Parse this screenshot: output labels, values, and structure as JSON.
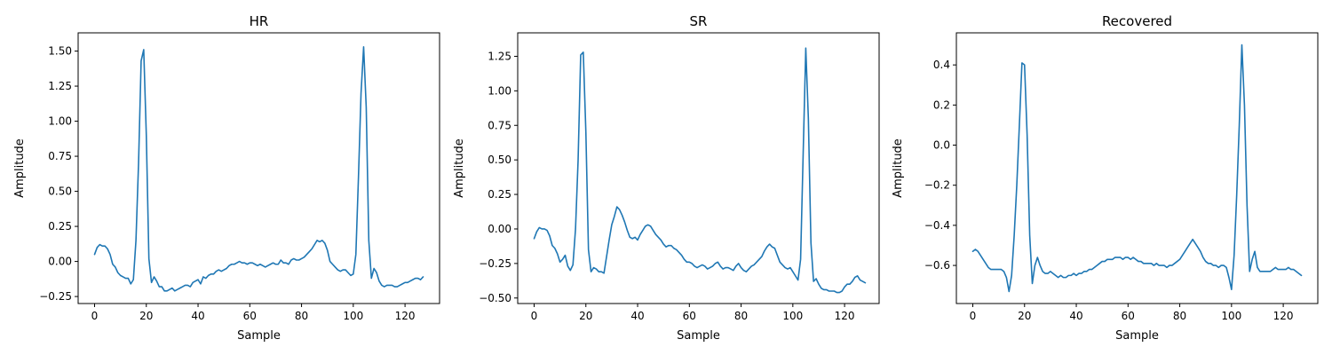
{
  "chart_data": [
    {
      "type": "line",
      "title": "HR",
      "xlabel": "Sample",
      "ylabel": "Amplitude",
      "xlim": [
        -6.35,
        133.35
      ],
      "ylim": [
        -0.3,
        1.63
      ],
      "xticks": [
        0,
        20,
        40,
        60,
        80,
        100,
        120
      ],
      "yticks": [
        -0.25,
        0.0,
        0.25,
        0.5,
        0.75,
        1.0,
        1.25,
        1.5
      ],
      "ytick_labels": [
        "−0.25",
        "0.00",
        "0.25",
        "0.50",
        "0.75",
        "1.00",
        "1.25",
        "1.50"
      ],
      "grid": false,
      "color": "#1f77b4",
      "series": [
        {
          "values": [
            0.05,
            0.1,
            0.12,
            0.11,
            0.11,
            0.09,
            0.05,
            -0.02,
            -0.04,
            -0.08,
            -0.1,
            -0.11,
            -0.12,
            -0.12,
            -0.16,
            -0.13,
            0.15,
            0.7,
            1.43,
            1.51,
            0.9,
            0.02,
            -0.15,
            -0.11,
            -0.14,
            -0.18,
            -0.18,
            -0.21,
            -0.21,
            -0.2,
            -0.19,
            -0.21,
            -0.2,
            -0.19,
            -0.18,
            -0.17,
            -0.17,
            -0.18,
            -0.15,
            -0.14,
            -0.13,
            -0.16,
            -0.11,
            -0.12,
            -0.1,
            -0.09,
            -0.09,
            -0.07,
            -0.06,
            -0.07,
            -0.06,
            -0.05,
            -0.03,
            -0.02,
            -0.02,
            -0.01,
            0.0,
            -0.01,
            -0.01,
            -0.02,
            -0.01,
            -0.01,
            -0.02,
            -0.03,
            -0.02,
            -0.03,
            -0.04,
            -0.03,
            -0.02,
            -0.01,
            -0.02,
            -0.02,
            0.01,
            -0.01,
            -0.01,
            -0.02,
            0.01,
            0.02,
            0.01,
            0.01,
            0.02,
            0.03,
            0.05,
            0.07,
            0.09,
            0.12,
            0.15,
            0.14,
            0.15,
            0.13,
            0.08,
            0.0,
            -0.02,
            -0.04,
            -0.06,
            -0.07,
            -0.06,
            -0.06,
            -0.08,
            -0.1,
            -0.09,
            0.05,
            0.6,
            1.2,
            1.53,
            1.1,
            0.15,
            -0.12,
            -0.05,
            -0.08,
            -0.14,
            -0.17,
            -0.18,
            -0.17,
            -0.17,
            -0.17,
            -0.18,
            -0.18,
            -0.17,
            -0.16,
            -0.15,
            -0.15,
            -0.14,
            -0.13,
            -0.12,
            -0.12,
            -0.13,
            -0.11
          ]
        }
      ]
    },
    {
      "type": "line",
      "title": "SR",
      "xlabel": "Sample",
      "ylabel": "Amplitude",
      "xlim": [
        -6.35,
        133.35
      ],
      "ylim": [
        -0.54,
        1.42
      ],
      "xticks": [
        0,
        20,
        40,
        60,
        80,
        100,
        120
      ],
      "yticks": [
        -0.5,
        -0.25,
        0.0,
        0.25,
        0.5,
        0.75,
        1.0,
        1.25
      ],
      "ytick_labels": [
        "−0.50",
        "−0.25",
        "0.00",
        "0.25",
        "0.50",
        "0.75",
        "1.00",
        "1.25"
      ],
      "grid": false,
      "color": "#1f77b4",
      "series": [
        {
          "values": [
            -0.07,
            -0.02,
            0.01,
            0.0,
            0.0,
            -0.01,
            -0.05,
            -0.12,
            -0.14,
            -0.18,
            -0.24,
            -0.22,
            -0.19,
            -0.27,
            -0.3,
            -0.26,
            0.0,
            0.5,
            1.26,
            1.28,
            0.7,
            -0.15,
            -0.31,
            -0.28,
            -0.29,
            -0.31,
            -0.31,
            -0.32,
            -0.2,
            -0.08,
            0.03,
            0.09,
            0.16,
            0.14,
            0.1,
            0.05,
            -0.01,
            -0.06,
            -0.07,
            -0.06,
            -0.08,
            -0.04,
            -0.01,
            0.02,
            0.03,
            0.02,
            -0.01,
            -0.04,
            -0.06,
            -0.08,
            -0.11,
            -0.13,
            -0.12,
            -0.12,
            -0.14,
            -0.15,
            -0.17,
            -0.19,
            -0.22,
            -0.24,
            -0.24,
            -0.25,
            -0.27,
            -0.28,
            -0.27,
            -0.26,
            -0.27,
            -0.29,
            -0.28,
            -0.27,
            -0.25,
            -0.24,
            -0.27,
            -0.29,
            -0.28,
            -0.28,
            -0.29,
            -0.3,
            -0.27,
            -0.25,
            -0.28,
            -0.3,
            -0.31,
            -0.29,
            -0.27,
            -0.26,
            -0.24,
            -0.22,
            -0.2,
            -0.16,
            -0.13,
            -0.11,
            -0.13,
            -0.14,
            -0.19,
            -0.24,
            -0.26,
            -0.28,
            -0.29,
            -0.28,
            -0.31,
            -0.34,
            -0.37,
            -0.22,
            0.55,
            1.31,
            0.8,
            -0.1,
            -0.38,
            -0.36,
            -0.4,
            -0.43,
            -0.44,
            -0.44,
            -0.45,
            -0.45,
            -0.45,
            -0.46,
            -0.46,
            -0.45,
            -0.42,
            -0.4,
            -0.4,
            -0.38,
            -0.35,
            -0.34,
            -0.37,
            -0.38,
            -0.39
          ]
        }
      ]
    },
    {
      "type": "line",
      "title": "Recovered",
      "xlabel": "Sample",
      "ylabel": "Amplitude",
      "xlim": [
        -6.35,
        133.35
      ],
      "ylim": [
        -0.79,
        0.56
      ],
      "xticks": [
        0,
        20,
        40,
        60,
        80,
        100,
        120
      ],
      "yticks": [
        -0.6,
        -0.4,
        -0.2,
        0.0,
        0.2,
        0.4
      ],
      "ytick_labels": [
        "−0.6",
        "−0.4",
        "−0.2",
        "0.0",
        "0.2",
        "0.4"
      ],
      "grid": false,
      "color": "#1f77b4",
      "series": [
        {
          "values": [
            -0.53,
            -0.52,
            -0.53,
            -0.55,
            -0.57,
            -0.59,
            -0.61,
            -0.62,
            -0.62,
            -0.62,
            -0.62,
            -0.62,
            -0.63,
            -0.66,
            -0.73,
            -0.65,
            -0.45,
            -0.2,
            0.1,
            0.41,
            0.4,
            0.05,
            -0.45,
            -0.69,
            -0.6,
            -0.56,
            -0.6,
            -0.63,
            -0.64,
            -0.64,
            -0.63,
            -0.64,
            -0.65,
            -0.66,
            -0.65,
            -0.66,
            -0.66,
            -0.65,
            -0.65,
            -0.64,
            -0.65,
            -0.64,
            -0.64,
            -0.63,
            -0.63,
            -0.62,
            -0.62,
            -0.61,
            -0.6,
            -0.59,
            -0.58,
            -0.58,
            -0.57,
            -0.57,
            -0.57,
            -0.56,
            -0.56,
            -0.56,
            -0.57,
            -0.56,
            -0.56,
            -0.57,
            -0.56,
            -0.57,
            -0.58,
            -0.58,
            -0.59,
            -0.59,
            -0.59,
            -0.59,
            -0.6,
            -0.59,
            -0.6,
            -0.6,
            -0.6,
            -0.61,
            -0.6,
            -0.6,
            -0.59,
            -0.58,
            -0.57,
            -0.55,
            -0.53,
            -0.51,
            -0.49,
            -0.47,
            -0.49,
            -0.51,
            -0.53,
            -0.56,
            -0.58,
            -0.59,
            -0.59,
            -0.6,
            -0.6,
            -0.61,
            -0.6,
            -0.6,
            -0.61,
            -0.66,
            -0.72,
            -0.55,
            -0.25,
            0.1,
            0.5,
            0.2,
            -0.3,
            -0.63,
            -0.57,
            -0.53,
            -0.61,
            -0.63,
            -0.63,
            -0.63,
            -0.63,
            -0.63,
            -0.62,
            -0.61,
            -0.62,
            -0.62,
            -0.62,
            -0.62,
            -0.61,
            -0.62,
            -0.62,
            -0.63,
            -0.64,
            -0.65
          ]
        }
      ]
    }
  ]
}
